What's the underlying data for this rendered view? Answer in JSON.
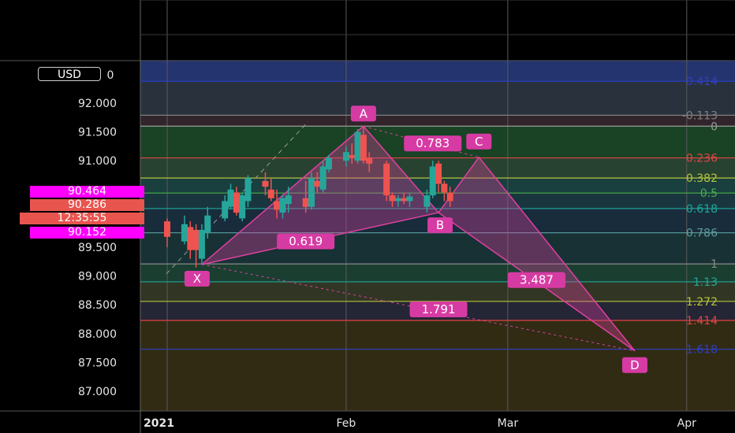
{
  "currency_badge": "USD",
  "price_badges": [
    {
      "label": "90.464",
      "color": "#ff00ff"
    },
    {
      "label": "90.286",
      "color": "#e8554f"
    },
    {
      "label": "12:35:55",
      "color": "#e8554f"
    },
    {
      "label": "90.152",
      "color": "#ff00ff"
    }
  ],
  "chart_data": {
    "type": "candlestick",
    "y_ticks": [
      "92.000",
      "91.500",
      "91.000",
      "89.500",
      "89.000",
      "88.500",
      "88.000",
      "87.500",
      "87.000"
    ],
    "y_tick_values": [
      92.0,
      91.5,
      91.0,
      89.5,
      89.0,
      88.5,
      88.0,
      87.5,
      87.0
    ],
    "x_ticks": [
      {
        "label": "2021",
        "date": "2021-01-01"
      },
      {
        "label": "Feb",
        "date": "2021-02-01"
      },
      {
        "label": "Mar",
        "date": "2021-03-01"
      },
      {
        "label": "Apr",
        "date": "2021-04-01"
      }
    ],
    "ylim": [
      86.4,
      92.8
    ],
    "colors": {
      "up": "#26a69a",
      "down": "#ef5350",
      "harmonic": "#e040a0"
    },
    "candles": [
      {
        "date": "2021-01-01",
        "open": 89.95,
        "high": 90.0,
        "low": 89.5,
        "close": 89.68
      },
      {
        "date": "2021-01-04",
        "open": 89.6,
        "high": 90.05,
        "low": 89.55,
        "close": 89.9
      },
      {
        "date": "2021-01-05",
        "open": 89.85,
        "high": 89.95,
        "low": 89.3,
        "close": 89.45
      },
      {
        "date": "2021-01-06",
        "open": 89.8,
        "high": 89.9,
        "low": 89.15,
        "close": 89.45
      },
      {
        "date": "2021-01-07",
        "open": 89.3,
        "high": 89.9,
        "low": 89.2,
        "close": 89.8
      },
      {
        "date": "2021-01-08",
        "open": 89.75,
        "high": 90.2,
        "low": 89.65,
        "close": 90.05
      },
      {
        "date": "2021-01-11",
        "open": 90.0,
        "high": 90.4,
        "low": 89.95,
        "close": 90.3
      },
      {
        "date": "2021-01-12",
        "open": 90.2,
        "high": 90.6,
        "low": 90.15,
        "close": 90.5
      },
      {
        "date": "2021-01-13",
        "open": 90.45,
        "high": 90.55,
        "low": 90.05,
        "close": 90.1
      },
      {
        "date": "2021-01-14",
        "open": 90.0,
        "high": 90.45,
        "low": 89.95,
        "close": 90.4
      },
      {
        "date": "2021-01-15",
        "open": 90.3,
        "high": 90.75,
        "low": 90.2,
        "close": 90.7
      },
      {
        "date": "2021-01-18",
        "open": 90.65,
        "high": 90.8,
        "low": 90.4,
        "close": 90.55
      },
      {
        "date": "2021-01-19",
        "open": 90.5,
        "high": 90.7,
        "low": 90.3,
        "close": 90.35
      },
      {
        "date": "2021-01-20",
        "open": 90.3,
        "high": 90.5,
        "low": 90.0,
        "close": 90.15
      },
      {
        "date": "2021-01-21",
        "open": 90.1,
        "high": 90.4,
        "low": 90.0,
        "close": 90.35
      },
      {
        "date": "2021-01-22",
        "open": 90.25,
        "high": 90.55,
        "low": 90.1,
        "close": 90.4
      },
      {
        "date": "2021-01-25",
        "open": 90.35,
        "high": 90.65,
        "low": 90.1,
        "close": 90.2
      },
      {
        "date": "2021-01-26",
        "open": 90.2,
        "high": 90.8,
        "low": 90.15,
        "close": 90.7
      },
      {
        "date": "2021-01-27",
        "open": 90.65,
        "high": 90.8,
        "low": 90.45,
        "close": 90.55
      },
      {
        "date": "2021-01-28",
        "open": 90.5,
        "high": 91.0,
        "low": 90.45,
        "close": 90.9
      },
      {
        "date": "2021-01-29",
        "open": 90.85,
        "high": 91.1,
        "low": 90.8,
        "close": 91.05
      },
      {
        "date": "2021-02-01",
        "open": 91.0,
        "high": 91.25,
        "low": 90.9,
        "close": 91.15
      },
      {
        "date": "2021-02-02",
        "open": 91.1,
        "high": 91.3,
        "low": 90.95,
        "close": 91.05
      },
      {
        "date": "2021-02-03",
        "open": 91.0,
        "high": 91.55,
        "low": 90.95,
        "close": 91.5
      },
      {
        "date": "2021-02-04",
        "open": 91.45,
        "high": 91.58,
        "low": 90.95,
        "close": 91.0
      },
      {
        "date": "2021-02-05",
        "open": 91.05,
        "high": 91.15,
        "low": 90.8,
        "close": 90.95
      },
      {
        "date": "2021-02-08",
        "open": 90.95,
        "high": 91.0,
        "low": 90.3,
        "close": 90.4
      },
      {
        "date": "2021-02-09",
        "open": 90.4,
        "high": 90.45,
        "low": 90.2,
        "close": 90.3
      },
      {
        "date": "2021-02-10",
        "open": 90.3,
        "high": 90.4,
        "low": 90.2,
        "close": 90.35
      },
      {
        "date": "2021-02-11",
        "open": 90.35,
        "high": 90.45,
        "low": 90.25,
        "close": 90.3
      },
      {
        "date": "2021-02-12",
        "open": 90.3,
        "high": 90.45,
        "low": 90.2,
        "close": 90.38
      },
      {
        "date": "2021-02-15",
        "open": 90.2,
        "high": 90.5,
        "low": 90.1,
        "close": 90.4
      },
      {
        "date": "2021-02-16",
        "open": 90.4,
        "high": 91.0,
        "low": 90.35,
        "close": 90.9
      },
      {
        "date": "2021-02-17",
        "open": 90.95,
        "high": 91.0,
        "low": 90.45,
        "close": 90.6
      },
      {
        "date": "2021-02-18",
        "open": 90.6,
        "high": 90.65,
        "low": 90.3,
        "close": 90.45
      },
      {
        "date": "2021-02-19",
        "open": 90.45,
        "high": 90.55,
        "low": 90.2,
        "close": 90.3
      }
    ],
    "fibonacci": [
      {
        "label": "0.414",
        "value": 92.38,
        "color": "#2f3fc6",
        "fill": "#2a3d83"
      },
      {
        "label": "-0.113",
        "value": 91.79,
        "color": "#7f7f7f",
        "fill": "#303a48"
      },
      {
        "label": "0",
        "value": 91.6,
        "color": "#9a9a9a",
        "fill": "#3a2b32"
      },
      {
        "label": "0.236",
        "value": 91.05,
        "color": "#e04545",
        "fill": "#1f4f2b"
      },
      {
        "label": "0.382",
        "value": 90.7,
        "color": "#b5c23a",
        "fill": "#2f4e3a"
      },
      {
        "label": "0.5",
        "value": 90.44,
        "color": "#4cae4c",
        "fill": "#1d4a4a"
      },
      {
        "label": "0.618",
        "value": 90.17,
        "color": "#1fa89a",
        "fill": "#1d3f4a"
      },
      {
        "label": "0.786",
        "value": 89.75,
        "color": "#5f9ea0",
        "fill": "#1c3445"
      },
      {
        "label": "1",
        "value": 89.21,
        "color": "#8a8a8a",
        "fill": "#1b3a3e"
      },
      {
        "label": "1.13",
        "value": 88.9,
        "color": "#1fa89a",
        "fill": "#1e4a3a"
      },
      {
        "label": "1.272",
        "value": 88.56,
        "color": "#b5c23a",
        "fill": "#3a3f2a"
      },
      {
        "label": "1.414",
        "value": 88.23,
        "color": "#e04545",
        "fill": "#2a2b3e"
      },
      {
        "label": "1.618",
        "value": 87.73,
        "color": "#2f3fc6",
        "fill": "#3a3317"
      }
    ],
    "harmonic_points": [
      {
        "label": "X",
        "date": "2021-01-07",
        "price": 89.2
      },
      {
        "label": "A",
        "date": "2021-02-04",
        "price": 91.6
      },
      {
        "label": "B",
        "date": "2021-02-17",
        "price": 90.1
      },
      {
        "label": "C",
        "date": "2021-02-24",
        "price": 91.06
      },
      {
        "label": "D",
        "date": "2021-03-23",
        "price": 87.7
      }
    ],
    "ratios": [
      {
        "label": "0.619",
        "date": "2021-01-25",
        "price": 89.6
      },
      {
        "label": "0.783",
        "date": "2021-02-16",
        "price": 91.3
      },
      {
        "label": "3.487",
        "date": "2021-03-06",
        "price": 88.93
      },
      {
        "label": "1.791",
        "date": "2021-02-17",
        "price": 88.42
      }
    ]
  }
}
